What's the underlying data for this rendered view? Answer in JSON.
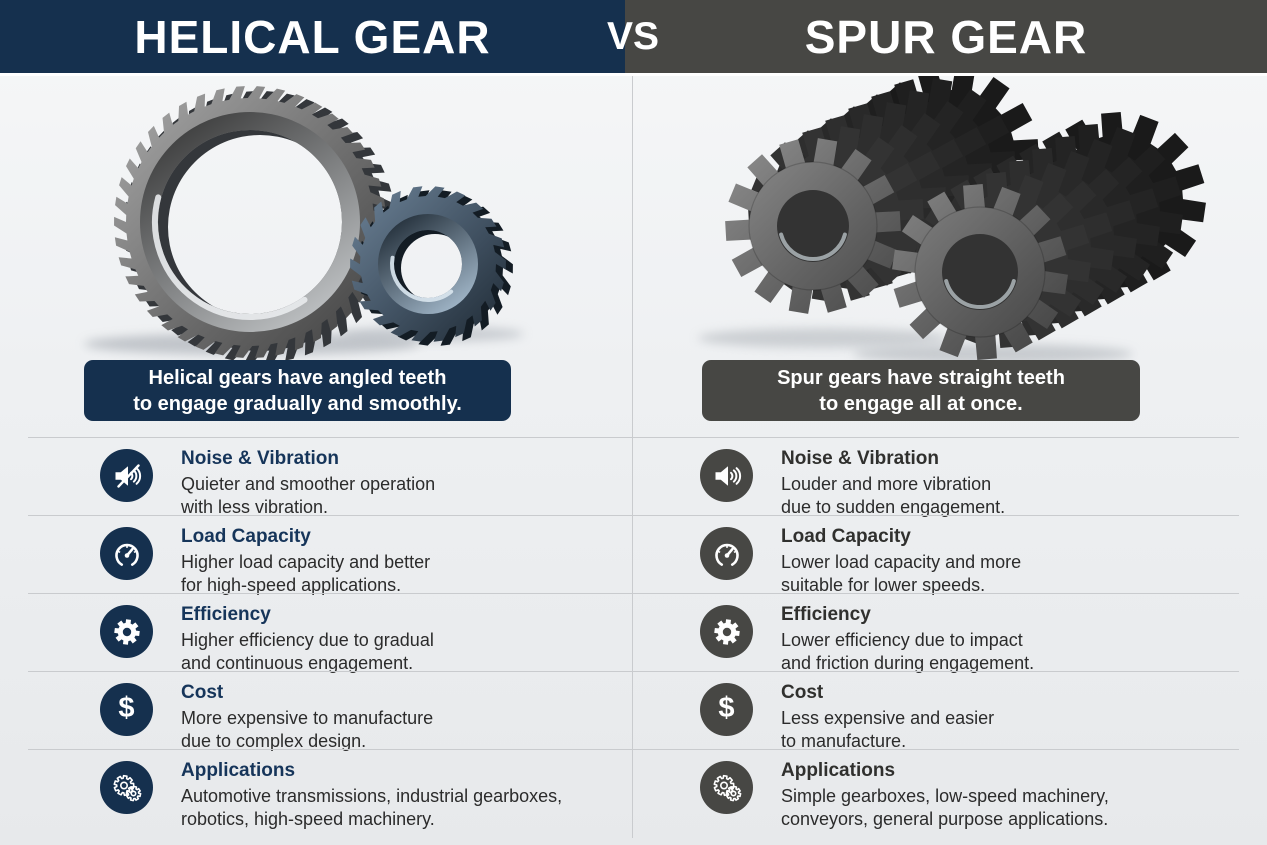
{
  "header": {
    "left_title": "HELICAL GEAR",
    "vs_label": "VS",
    "right_title": "SPUR GEAR"
  },
  "captions": {
    "left": "Helical gears have angled teeth\nto engage gradually and smoothly.",
    "right": "Spur gears have straight teeth\nto engage all at once."
  },
  "rows": [
    {
      "title": "Noise & Vibration",
      "icon": "volume-icon",
      "left": "Quieter and smoother operation\nwith less vibration.",
      "right": "Louder and more vibration\ndue to sudden engagement."
    },
    {
      "title": "Load Capacity",
      "icon": "gauge-icon",
      "left": "Higher load capacity and better\nfor high-speed applications.",
      "right": "Lower load capacity and more\nsuitable for lower speeds."
    },
    {
      "title": "Efficiency",
      "icon": "gear-icon",
      "left": "Higher efficiency due to gradual\nand continuous engagement.",
      "right": "Lower efficiency due to impact\nand friction during engagement."
    },
    {
      "title": "Cost",
      "icon": "dollar-icon",
      "icon_glyph": "$",
      "left": "More expensive to manufacture\ndue to complex design.",
      "right": "Less expensive and easier\nto manufacture."
    },
    {
      "title": "Applications",
      "icon": "gears-icon",
      "left": "Automotive transmissions, industrial gearboxes,\nrobotics, high-speed machinery.",
      "right": "Simple gearboxes, low-speed machinery,\nconveyors, general purpose applications."
    }
  ],
  "colors": {
    "navy": "#15304e",
    "charcoal": "#474744",
    "navy_heading": "#16355a",
    "charcoal_heading": "#30302e",
    "body_text": "#2b2b2b",
    "divider": "#c9cbce",
    "background": "#eef0f2",
    "white": "#ffffff"
  }
}
